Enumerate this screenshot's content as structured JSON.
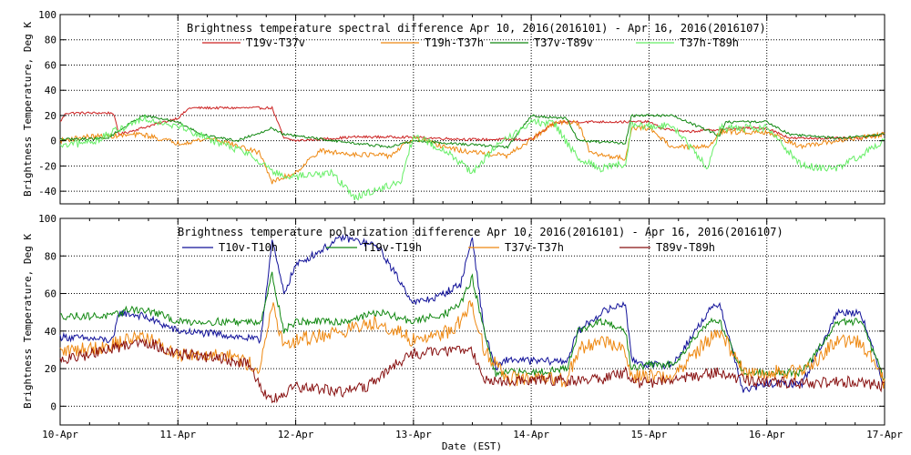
{
  "figure": {
    "xlabel": "Date (EST)",
    "x_tick_labels": [
      "10-Apr",
      "11-Apr",
      "12-Apr",
      "13-Apr",
      "14-Apr",
      "15-Apr",
      "16-Apr",
      "17-Apr"
    ]
  },
  "chart_data": [
    {
      "type": "line",
      "title": "Brightness temperature spectral difference     Apr 10, 2016(2016101) - Apr 16, 2016(2016107)",
      "ylabel": "Brightness Temperature, Deg K",
      "xlabel": "",
      "xlim": [
        0,
        7
      ],
      "ylim": [
        -50,
        100
      ],
      "y_ticks": [
        -40,
        -20,
        0,
        20,
        40,
        60,
        80,
        100
      ],
      "grid": true,
      "x_tick_labels": [
        "10-Apr",
        "11-Apr",
        "12-Apr",
        "13-Apr",
        "14-Apr",
        "15-Apr",
        "16-Apr",
        "17-Apr"
      ],
      "series": [
        {
          "name": "T19v-T37v",
          "color": "#cc2222",
          "noise": 1,
          "x": [
            0,
            0.05,
            0.45,
            0.5,
            1.0,
            1.1,
            1.8,
            1.9,
            2.0,
            2.5,
            2.9,
            3.5,
            4.0,
            4.2,
            4.3,
            5.0,
            5.1,
            5.3,
            5.6,
            5.8,
            6.0,
            6.2,
            6.6,
            6.8,
            7.0
          ],
          "values": [
            15,
            22,
            22,
            5,
            18,
            26,
            26,
            2,
            0,
            3,
            3,
            1,
            1,
            14,
            15,
            15,
            10,
            7,
            9,
            10,
            10,
            2,
            2,
            2,
            6
          ]
        },
        {
          "name": "T19h-T37h",
          "color": "#ee8811",
          "noise": 2,
          "x": [
            0,
            0.2,
            0.5,
            0.7,
            1.0,
            1.3,
            1.7,
            1.8,
            2.0,
            2.2,
            2.4,
            2.8,
            3.0,
            3.4,
            3.8,
            4.2,
            4.3,
            4.4,
            4.5,
            4.8,
            4.85,
            5.0,
            5.2,
            5.5,
            5.6,
            6.0,
            6.3,
            6.6,
            7.0
          ],
          "values": [
            0,
            3,
            4,
            5,
            -2,
            2,
            -10,
            -33,
            -25,
            -8,
            -10,
            -12,
            2,
            -8,
            -12,
            14,
            15,
            14,
            -10,
            -14,
            10,
            10,
            -5,
            -5,
            7,
            7,
            -5,
            0,
            5
          ]
        },
        {
          "name": "T37v-T89v",
          "color": "#118811",
          "noise": 1,
          "x": [
            0,
            0.4,
            0.45,
            0.7,
            1.0,
            1.2,
            1.5,
            1.8,
            1.9,
            2.5,
            2.8,
            3.0,
            3.3,
            3.8,
            4.0,
            4.2,
            4.3,
            4.4,
            4.8,
            4.85,
            5.2,
            5.6,
            5.65,
            6.0,
            6.2,
            6.6,
            7.0
          ],
          "values": [
            1,
            2,
            5,
            20,
            15,
            5,
            0,
            10,
            5,
            -2,
            -5,
            0,
            -2,
            -5,
            20,
            18,
            18,
            0,
            -2,
            20,
            20,
            4,
            15,
            15,
            5,
            2,
            5
          ]
        },
        {
          "name": "T37h-T89h",
          "color": "#66ee66",
          "noise": 3,
          "x": [
            0,
            0.3,
            0.7,
            1.0,
            1.3,
            1.6,
            1.9,
            2.3,
            2.5,
            2.9,
            3.0,
            3.3,
            3.5,
            3.7,
            4.0,
            4.2,
            4.4,
            4.6,
            4.8,
            4.85,
            5.2,
            5.5,
            5.6,
            6.0,
            6.3,
            6.6,
            7.0
          ],
          "values": [
            -5,
            0,
            18,
            12,
            0,
            -10,
            -30,
            -25,
            -45,
            -32,
            5,
            -10,
            -25,
            -5,
            15,
            13,
            -15,
            -22,
            -18,
            12,
            12,
            -22,
            10,
            10,
            -20,
            -22,
            0
          ]
        }
      ]
    },
    {
      "type": "line",
      "title": "Brightness temperature polarization difference     Apr 10, 2016(2016101) - Apr 16, 2016(2016107)",
      "ylabel": "Brightness Temperature, Deg K",
      "xlabel": "Date (EST)",
      "xlim": [
        0,
        7
      ],
      "ylim": [
        -10,
        100
      ],
      "y_ticks": [
        0,
        20,
        40,
        60,
        80,
        100
      ],
      "grid": true,
      "x_tick_labels": [
        "10-Apr",
        "11-Apr",
        "12-Apr",
        "13-Apr",
        "14-Apr",
        "15-Apr",
        "16-Apr",
        "17-Apr"
      ],
      "series": [
        {
          "name": "T10v-T10h",
          "color": "#111199",
          "noise": 2,
          "x": [
            0,
            0.45,
            0.5,
            0.7,
            1.0,
            1.4,
            1.7,
            1.8,
            1.9,
            2.0,
            2.4,
            2.7,
            3.0,
            3.2,
            3.4,
            3.5,
            3.6,
            3.7,
            3.8,
            4.0,
            4.3,
            4.4,
            4.6,
            4.8,
            4.85,
            5.0,
            5.2,
            5.5,
            5.6,
            5.8,
            6.0,
            6.3,
            6.6,
            6.8,
            7.0
          ],
          "values": [
            37,
            35,
            50,
            48,
            40,
            38,
            35,
            88,
            60,
            75,
            90,
            85,
            55,
            58,
            65,
            90,
            40,
            20,
            25,
            24,
            24,
            40,
            50,
            55,
            25,
            22,
            22,
            50,
            55,
            8,
            12,
            12,
            50,
            50,
            10
          ]
        },
        {
          "name": "T19v-T19h",
          "color": "#118811",
          "noise": 2,
          "x": [
            0,
            0.45,
            0.6,
            0.8,
            1.0,
            1.4,
            1.7,
            1.8,
            1.9,
            2.0,
            2.4,
            2.7,
            3.0,
            3.3,
            3.4,
            3.5,
            3.6,
            3.7,
            3.8,
            4.0,
            4.3,
            4.4,
            4.6,
            4.8,
            4.85,
            5.0,
            5.2,
            5.5,
            5.6,
            5.8,
            6.0,
            6.3,
            6.6,
            6.8,
            7.0
          ],
          "values": [
            48,
            48,
            52,
            50,
            45,
            45,
            45,
            70,
            40,
            45,
            45,
            50,
            45,
            50,
            55,
            68,
            40,
            16,
            18,
            18,
            20,
            40,
            45,
            40,
            20,
            22,
            22,
            45,
            45,
            18,
            18,
            18,
            45,
            45,
            14
          ]
        },
        {
          "name": "T37v-T37h",
          "color": "#ee8811",
          "noise": 4,
          "x": [
            0,
            0.4,
            0.7,
            0.9,
            1.0,
            1.4,
            1.7,
            1.8,
            1.9,
            2.0,
            2.4,
            2.7,
            3.0,
            3.3,
            3.4,
            3.5,
            3.6,
            3.8,
            4.0,
            4.3,
            4.4,
            4.6,
            4.8,
            4.85,
            5.0,
            5.2,
            5.5,
            5.6,
            5.8,
            6.0,
            6.3,
            6.6,
            6.8,
            7.0
          ],
          "values": [
            29,
            32,
            38,
            30,
            28,
            28,
            20,
            55,
            30,
            35,
            40,
            45,
            35,
            40,
            45,
            55,
            30,
            15,
            14,
            14,
            30,
            35,
            30,
            16,
            16,
            16,
            35,
            40,
            18,
            18,
            18,
            35,
            35,
            12
          ]
        },
        {
          "name": "T89v-T89h",
          "color": "#881111",
          "noise": 3,
          "x": [
            0,
            0.4,
            0.7,
            1.0,
            1.4,
            1.6,
            1.75,
            1.8,
            2.0,
            2.4,
            2.6,
            2.8,
            3.0,
            3.4,
            3.5,
            3.6,
            3.8,
            4.0,
            4.4,
            4.6,
            4.8,
            4.9,
            5.2,
            5.6,
            5.8,
            6.0,
            6.3,
            6.6,
            6.8,
            7.0
          ],
          "values": [
            24,
            30,
            35,
            28,
            25,
            22,
            5,
            3,
            10,
            8,
            10,
            20,
            28,
            30,
            30,
            14,
            13,
            14,
            14,
            14,
            18,
            12,
            14,
            18,
            14,
            13,
            12,
            13,
            13,
            10
          ]
        }
      ]
    }
  ]
}
